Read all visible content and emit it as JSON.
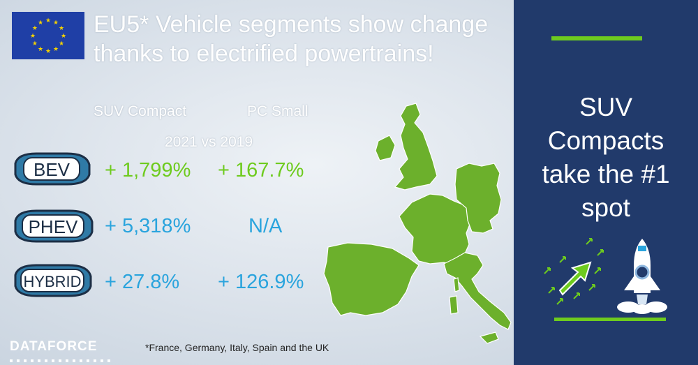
{
  "title": {
    "line1": "EU5* Vehicle segments show change",
    "line2": "thanks to electrified powertrains!"
  },
  "columns": {
    "suv_compact": "SUV Compact",
    "pc_small": "PC Small"
  },
  "comparison": "2021 vs 2019",
  "rows": [
    {
      "label": "BEV",
      "suv_compact": "+ 1,799%",
      "pc_small": "+ 167.7%"
    },
    {
      "label": "PHEV",
      "suv_compact": "+ 5,318%",
      "pc_small": "N/A"
    },
    {
      "label": "HYBRID",
      "suv_compact": "+ 27.8%",
      "pc_small": "+ 126.9%"
    }
  ],
  "brand": "DATAFORCE",
  "footnote": "*France, Germany, Italy, Spain and the UK",
  "panel": {
    "lines": [
      "SUV",
      "Compacts",
      "take the #1",
      "spot"
    ]
  },
  "icons": {
    "flag": "eu-flag-icon",
    "map": "europe-map-icon",
    "arrow": "growth-arrow-icon",
    "rocket": "rocket-icon"
  },
  "colors": {
    "accent_green": "#6ecb1e",
    "accent_blue": "#2aa4dd",
    "panel_navy": "#213a6b",
    "flag_blue": "#1f3fa6",
    "star_yellow": "#f5d200"
  }
}
